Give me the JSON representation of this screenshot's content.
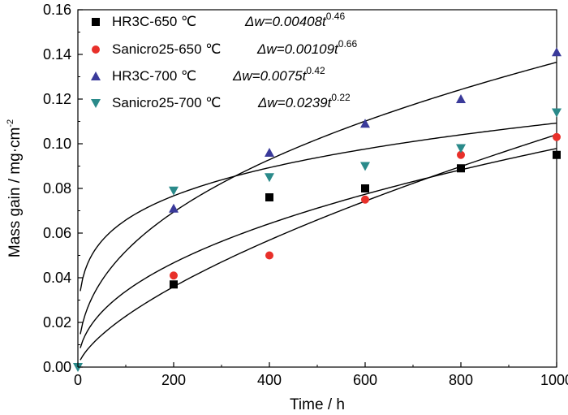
{
  "chart_data": {
    "type": "scatter",
    "title": "",
    "xlabel": "Time / h",
    "ylabel": "Mass gain / mg·cm⁻²",
    "ylabel_parts": {
      "main": "Mass gain / mg·cm",
      "sup": "-2"
    },
    "xlim": [
      0,
      1000
    ],
    "ylim": [
      0.0,
      0.16
    ],
    "xticks": [
      0,
      200,
      400,
      600,
      800,
      1000
    ],
    "xtick_labels": [
      "0",
      "200",
      "400",
      "600",
      "800",
      "1000"
    ],
    "yticks": [
      0.0,
      0.02,
      0.04,
      0.06,
      0.08,
      0.1,
      0.12,
      0.14,
      0.16
    ],
    "ytick_labels": [
      "0.00",
      "0.02",
      "0.04",
      "0.06",
      "0.08",
      "0.10",
      "0.12",
      "0.14",
      "0.16"
    ],
    "grid": false,
    "legend_position": "top-left",
    "series": [
      {
        "name": "HR3C-650 ℃",
        "marker": "square",
        "color": "#000000",
        "x": [
          200,
          400,
          600,
          800,
          1000
        ],
        "y": [
          0.037,
          0.076,
          0.08,
          0.089,
          0.095
        ],
        "fit": {
          "a": 0.00408,
          "n": 0.46,
          "eq_prefix": "Δw=0.00408t",
          "eq_exp": "0.46"
        }
      },
      {
        "name": "Sanicro25-650 ℃",
        "marker": "circle",
        "color": "#e8302a",
        "x": [
          200,
          400,
          600,
          800,
          1000
        ],
        "y": [
          0.041,
          0.05,
          0.075,
          0.095,
          0.103
        ],
        "fit": {
          "a": 0.00109,
          "n": 0.66,
          "eq_prefix": "Δw=0.00109t",
          "eq_exp": "0.66"
        }
      },
      {
        "name": "HR3C-700 ℃",
        "marker": "triangle-up",
        "color": "#3a3a9a",
        "x": [
          200,
          400,
          600,
          800,
          1000
        ],
        "y": [
          0.071,
          0.096,
          0.109,
          0.12,
          0.141
        ],
        "fit": {
          "a": 0.0075,
          "n": 0.42,
          "eq_prefix": "Δw=0.0075t",
          "eq_exp": "0.42"
        }
      },
      {
        "name": "Sanicro25-700 ℃",
        "marker": "triangle-down",
        "color": "#2a8a8a",
        "x": [
          200,
          400,
          600,
          800,
          1000
        ],
        "y": [
          0.079,
          0.085,
          0.09,
          0.098,
          0.114
        ],
        "fit": {
          "a": 0.0239,
          "n": 0.22,
          "eq_prefix": "Δw=0.0239t",
          "eq_exp": "0.22"
        }
      }
    ]
  }
}
